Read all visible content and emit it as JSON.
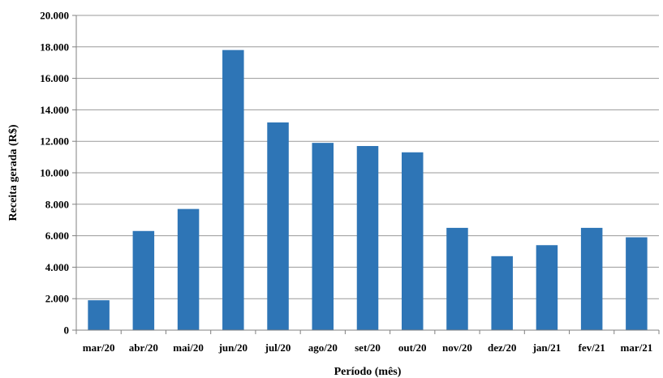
{
  "chart_data": {
    "type": "bar",
    "title": "",
    "xlabel": "Período (mês)",
    "ylabel": "Receita gerada (R$)",
    "ylim": [
      0,
      20000
    ],
    "yticks": [
      0,
      2000,
      4000,
      6000,
      8000,
      10000,
      12000,
      14000,
      16000,
      18000,
      20000
    ],
    "ytick_labels": [
      "0",
      "2.000",
      "4.000",
      "6.000",
      "8.000",
      "10.000",
      "12.000",
      "14.000",
      "16.000",
      "18.000",
      "20.000"
    ],
    "categories": [
      "mar/20",
      "abr/20",
      "mai/20",
      "jun/20",
      "jul/20",
      "ago/20",
      "set/20",
      "out/20",
      "nov/20",
      "dez/20",
      "jan/21",
      "fev/21",
      "mar/21"
    ],
    "values": [
      1900,
      6300,
      7700,
      17800,
      13200,
      11900,
      11700,
      11300,
      6500,
      4700,
      5400,
      6500,
      5900
    ],
    "grid": true,
    "legend": "none",
    "bar_color": "#2e75b6"
  }
}
